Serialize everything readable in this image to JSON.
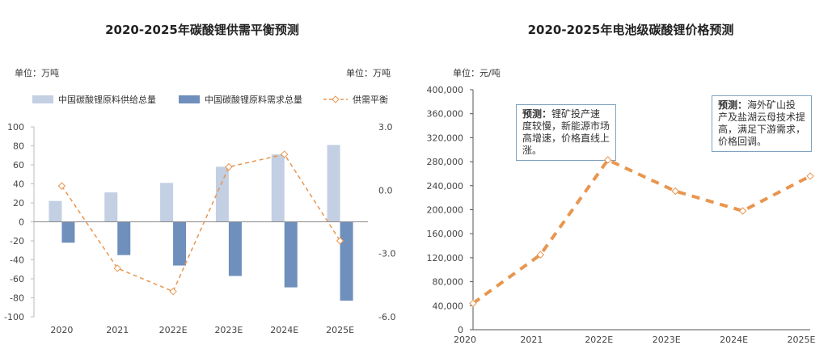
{
  "chart_data": [
    {
      "type": "bar",
      "title": "2020-2025年碳酸锂供需平衡预测",
      "unit_left": "单位：万吨",
      "unit_right": "单位：万吨",
      "categories": [
        "2020",
        "2021",
        "2022E",
        "2023E",
        "2024E",
        "2025E"
      ],
      "ylim": [
        -100,
        100
      ],
      "yticks": [
        "100",
        "80",
        "60",
        "40",
        "20",
        "0",
        "-20",
        "-40",
        "-60",
        "-80",
        "-100"
      ],
      "y2lim": [
        -6,
        3
      ],
      "y2ticks": [
        "3.0",
        "0.0",
        "-3.0",
        "-6.0"
      ],
      "legend_position": "top",
      "series": [
        {
          "name": "中国碳酸锂原料供给总量",
          "type": "bar",
          "axis": "left",
          "color": "#c3cfe2",
          "values": [
            22,
            31,
            41,
            58,
            71,
            81
          ]
        },
        {
          "name": "中国碳酸锂原料需求总量",
          "type": "bar",
          "axis": "left",
          "color": "#6f8fbc",
          "values": [
            -22,
            -35,
            -46,
            -57,
            -69,
            -83
          ]
        },
        {
          "name": "供需平衡",
          "type": "line",
          "axis": "right",
          "color": "#e8964f",
          "style": "dashed",
          "marker": "diamond",
          "values": [
            0.2,
            -3.7,
            -4.8,
            1.1,
            1.7,
            -2.4
          ]
        }
      ]
    },
    {
      "type": "line",
      "title": "2020-2025年电池级碳酸锂价格预测",
      "unit": "单位：元/吨",
      "categories": [
        "2020",
        "2021",
        "2022E",
        "2023E",
        "2024E",
        "2025E"
      ],
      "ylim": [
        0,
        400000
      ],
      "yticks": [
        "400,000",
        "360,000",
        "320,000",
        "280,000",
        "240,000",
        "200,000",
        "160,000",
        "120,000",
        "80,000",
        "40,000",
        "0"
      ],
      "series": [
        {
          "color": "#e8964f",
          "style": "dashed",
          "marker": "diamond",
          "values": [
            44000,
            125000,
            283000,
            231000,
            198000,
            256000
          ]
        }
      ],
      "annotations": [
        {
          "label": "预测：",
          "text": "锂矿投产速度较慢，新能源市场高增速，价格直线上涨。"
        },
        {
          "label": "预测：",
          "text": "海外矿山投产及盐湖云母技术提高，满足下游需求，价格回调。"
        }
      ]
    }
  ]
}
